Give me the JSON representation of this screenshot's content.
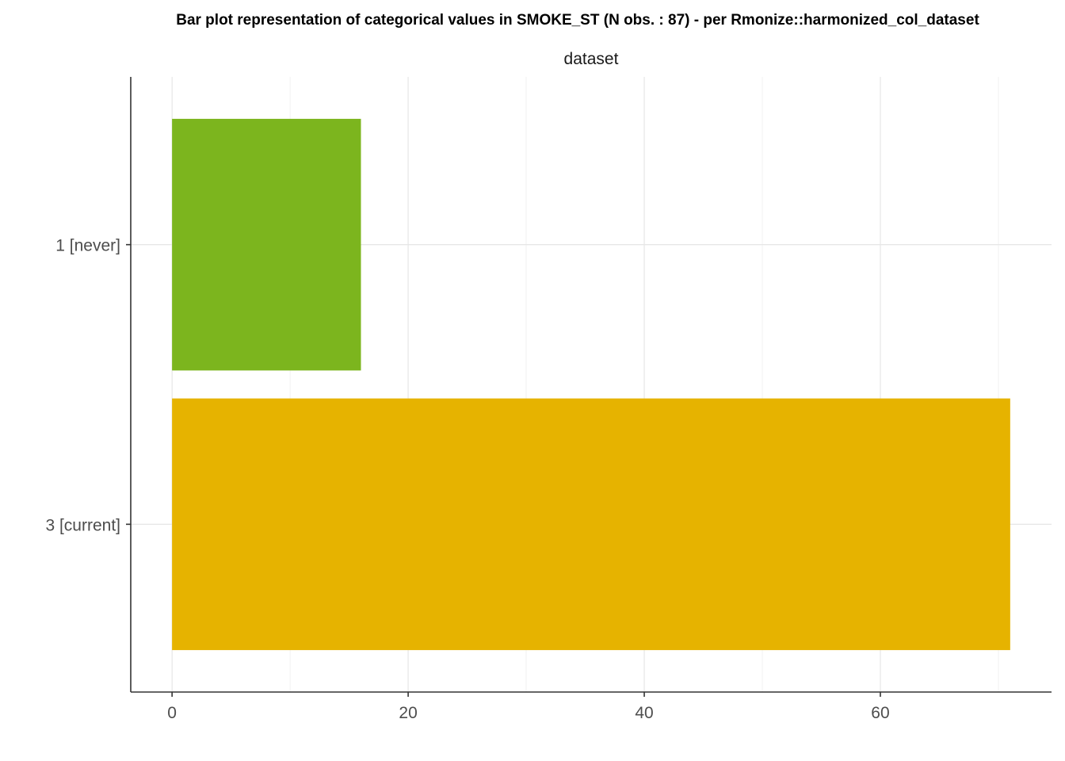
{
  "chart_data": {
    "type": "bar",
    "orientation": "horizontal",
    "title": "Bar plot representation of categorical values in SMOKE_ST (N obs. : 87) - per Rmonize::harmonized_col_dataset",
    "facet_label": "dataset",
    "xlabel": "",
    "ylabel": "",
    "categories": [
      "1 [never]",
      "3 [current]"
    ],
    "values": [
      16,
      71
    ],
    "colors": [
      "#7cb51e",
      "#e6b300"
    ],
    "x_ticks": [
      0,
      20,
      40,
      60
    ],
    "xlim": [
      -3.5,
      74.5
    ],
    "grid": true,
    "legend": "none"
  }
}
